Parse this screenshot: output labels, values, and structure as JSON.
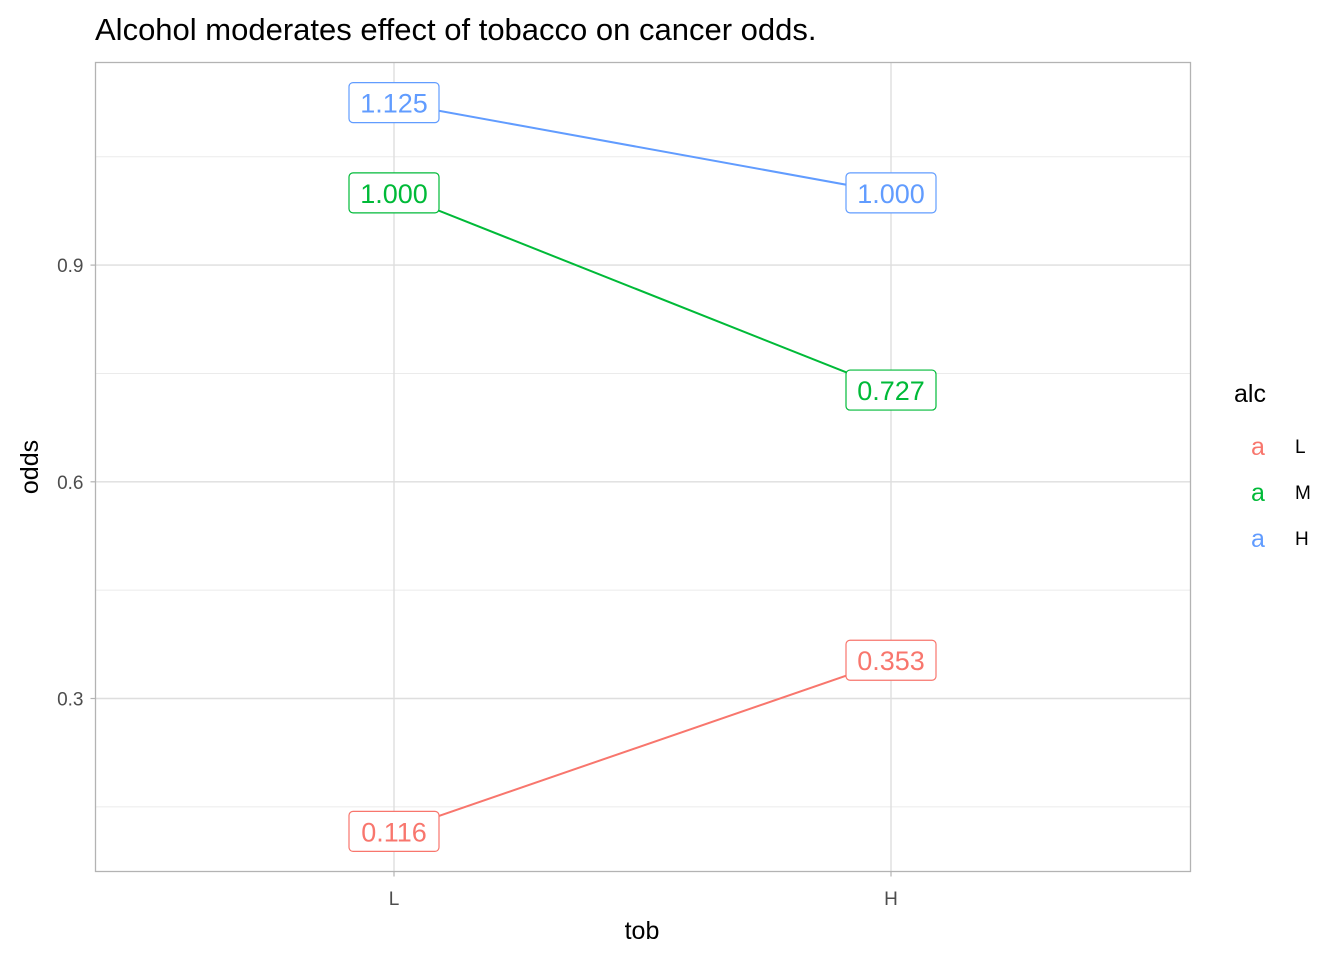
{
  "chart_data": {
    "type": "line",
    "title": "Alcohol moderates effect of tobacco on cancer odds.",
    "xlabel": "tob",
    "ylabel": "odds",
    "categories": [
      "L",
      "H"
    ],
    "y_ticks": [
      0.3,
      0.6,
      0.9
    ],
    "y_tick_labels": [
      "0.3",
      "0.6",
      "0.9"
    ],
    "ylim": [
      0.0605,
      1.1805
    ],
    "grid": true,
    "legend": {
      "title": "alc",
      "placement": "right",
      "key_glyph": "a"
    },
    "series": [
      {
        "name": "L",
        "color": "#F8766D",
        "values": [
          0.116,
          0.353
        ],
        "labels": [
          "0.116",
          "0.353"
        ]
      },
      {
        "name": "M",
        "color": "#00BA38",
        "values": [
          1.0,
          0.727
        ],
        "labels": [
          "1.000",
          "0.727"
        ]
      },
      {
        "name": "H",
        "color": "#619CFF",
        "values": [
          1.125,
          1.0
        ],
        "labels": [
          "1.125",
          "1.000"
        ]
      }
    ]
  }
}
